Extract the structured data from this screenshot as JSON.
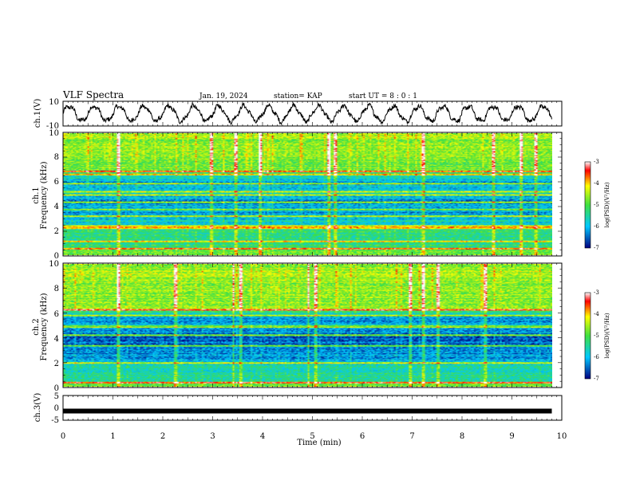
{
  "header": {
    "title": "VLF Spectra",
    "date": "Jan. 19, 2024",
    "station": "station= KAP",
    "start": "start UT =  8 : 0 : 1"
  },
  "colors": {
    "low": "#000080",
    "mid_low": "#00c8ff",
    "mid": "#40e040",
    "mid_high": "#ffff00",
    "high": "#ff0000",
    "top": "#ffffff"
  },
  "chart_data": [
    {
      "type": "line",
      "name": "ch1-waveform",
      "ylabel": "ch.1(V)",
      "ylim": [
        -10,
        10
      ],
      "yticks": [
        "10",
        "-10"
      ],
      "xlim": [
        0,
        10
      ],
      "x_unit": "min",
      "cycles": 20,
      "amplitude": 6
    },
    {
      "type": "heatmap",
      "name": "ch1-spectrogram",
      "ylabel_top": "ch.1",
      "ylabel": "Frequency (kHz)",
      "ylim": [
        0,
        10
      ],
      "yticks": [
        "0",
        "2",
        "4",
        "6",
        "8",
        "10"
      ],
      "xlim": [
        0,
        9.8
      ],
      "colorbar": {
        "label": "log(PSD)(V²/Hz)",
        "range": [
          -7,
          -3
        ],
        "ticks": [
          "-3",
          "-4",
          "-5",
          "-6",
          "-7"
        ]
      },
      "base_profile": [
        {
          "f": 0.0,
          "v": -4.6
        },
        {
          "f": 0.5,
          "v": -5.2
        },
        {
          "f": 1.0,
          "v": -5.4
        },
        {
          "f": 1.5,
          "v": -5.5
        },
        {
          "f": 2.0,
          "v": -5.3
        },
        {
          "f": 2.6,
          "v": -5.7
        },
        {
          "f": 3.0,
          "v": -5.9
        },
        {
          "f": 3.5,
          "v": -6.2
        },
        {
          "f": 4.0,
          "v": -6.0
        },
        {
          "f": 4.5,
          "v": -6.3
        },
        {
          "f": 5.0,
          "v": -5.6
        },
        {
          "f": 5.5,
          "v": -6.0
        },
        {
          "f": 6.0,
          "v": -6.1
        },
        {
          "f": 6.6,
          "v": -5.4
        },
        {
          "f": 7.0,
          "v": -4.9
        },
        {
          "f": 8.0,
          "v": -4.7
        },
        {
          "f": 9.0,
          "v": -4.6
        },
        {
          "f": 10.0,
          "v": -4.6
        }
      ],
      "bands_khz": [
        0.5,
        1.1,
        2.2,
        2.35,
        3.2,
        3.7,
        4.3,
        4.95,
        5.2,
        5.85,
        6.6,
        6.85
      ],
      "spikes_min": [
        1.1,
        2.95,
        3.45,
        3.95,
        5.3,
        5.45,
        7.2,
        8.6,
        9.15,
        9.45
      ]
    },
    {
      "type": "heatmap",
      "name": "ch2-spectrogram",
      "ylabel_top": "ch.2",
      "ylabel": "Frequency (kHz)",
      "ylim": [
        0,
        10
      ],
      "yticks": [
        "0",
        "2",
        "4",
        "6",
        "8",
        "10"
      ],
      "xlim": [
        0,
        9.8
      ],
      "colorbar": {
        "label": "log(PSD)(V²/Hz)",
        "range": [
          -7,
          -3
        ],
        "ticks": [
          "-3",
          "-4",
          "-5",
          "-6",
          "-7"
        ]
      },
      "base_profile": [
        {
          "f": 0.0,
          "v": -4.6
        },
        {
          "f": 0.5,
          "v": -5.4
        },
        {
          "f": 1.0,
          "v": -5.5
        },
        {
          "f": 1.5,
          "v": -5.6
        },
        {
          "f": 2.0,
          "v": -5.9
        },
        {
          "f": 2.6,
          "v": -6.3
        },
        {
          "f": 3.0,
          "v": -6.1
        },
        {
          "f": 3.5,
          "v": -6.4
        },
        {
          "f": 4.0,
          "v": -6.5
        },
        {
          "f": 4.5,
          "v": -6.2
        },
        {
          "f": 5.0,
          "v": -6.0
        },
        {
          "f": 5.5,
          "v": -6.3
        },
        {
          "f": 6.0,
          "v": -5.6
        },
        {
          "f": 6.3,
          "v": -4.7
        },
        {
          "f": 7.0,
          "v": -4.8
        },
        {
          "f": 8.0,
          "v": -4.7
        },
        {
          "f": 9.0,
          "v": -4.6
        },
        {
          "f": 10.0,
          "v": -4.6
        }
      ],
      "bands_khz": [
        0.3,
        1.9,
        3.3,
        4.2,
        4.9,
        5.8,
        6.3
      ],
      "spikes_min": [
        1.1,
        2.25,
        3.4,
        3.55,
        4.9,
        5.05,
        6.95,
        7.2,
        7.5,
        8.45
      ]
    },
    {
      "type": "line",
      "name": "ch3-waveform",
      "ylabel": "ch.3(V)",
      "ylim": [
        -5,
        5
      ],
      "yticks": [
        "5",
        "0",
        "-5"
      ],
      "xlim": [
        0,
        10
      ],
      "xlabel": "Time (min)",
      "xticks": [
        "0",
        "1",
        "2",
        "3",
        "4",
        "5",
        "6",
        "7",
        "8",
        "9",
        "10"
      ],
      "level": -1.3,
      "end_min": 9.8
    }
  ]
}
